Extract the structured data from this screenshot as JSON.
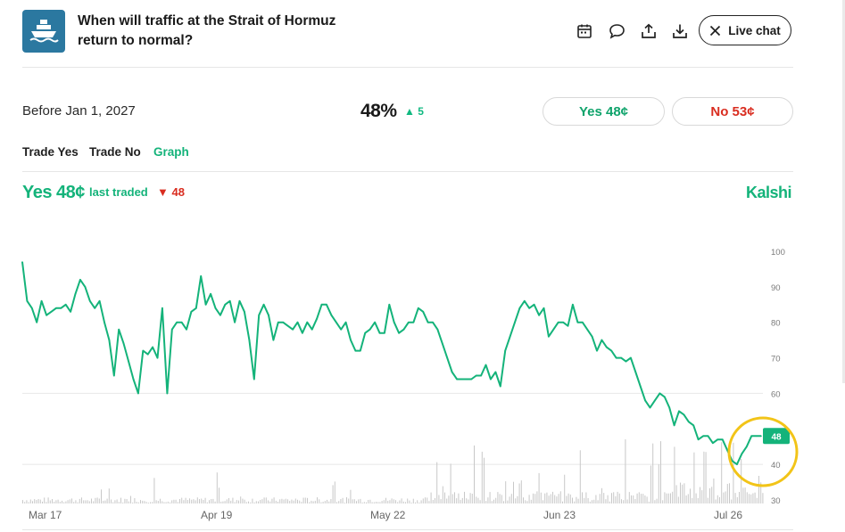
{
  "header": {
    "title": "When will traffic at the Strait of Hormuz return to normal?",
    "icon": "ship-icon",
    "actions": [
      "calendar-icon",
      "comment-icon",
      "share-icon",
      "download-icon"
    ],
    "live_chat_label": "Live chat"
  },
  "outcome": {
    "label": "Before Jan 1, 2027",
    "chance": "48%",
    "delta": "5",
    "yes_label": "Yes 48¢",
    "no_label": "No 53¢"
  },
  "tabs": [
    "Trade Yes",
    "Trade No",
    "Graph"
  ],
  "active_tab": "Graph",
  "chart_header": {
    "yes_price": "Yes 48¢",
    "last_traded_label": "last traded",
    "last_traded_value": "48",
    "logo_text": "Kalshi"
  },
  "colors": {
    "accent": "#14b37a",
    "negative": "#d92d20",
    "highlight_circle": "#f2c418",
    "icon_bg": "#2b78a0"
  },
  "chart_data": {
    "type": "line",
    "x_ticks": [
      "Mar 17",
      "Apr 19",
      "May 22",
      "Jun 23",
      "Jul 26"
    ],
    "ylim": [
      30,
      100
    ],
    "y_ticks": [
      100,
      90,
      80,
      70,
      60,
      40,
      30
    ],
    "current_value_label": "48",
    "series": [
      {
        "values": [
          97,
          86,
          84,
          80,
          86,
          82,
          83,
          84,
          84,
          85,
          83,
          88,
          92,
          90,
          86,
          84,
          86,
          80,
          75,
          65,
          78,
          74,
          69,
          64,
          60,
          72,
          71,
          73,
          70,
          84,
          60,
          78,
          80,
          80,
          78,
          83,
          84,
          93,
          85,
          88,
          84,
          82,
          85,
          86,
          80,
          86,
          83,
          75,
          64,
          82,
          85,
          82,
          75,
          80,
          80,
          79,
          78,
          80,
          77,
          80,
          78,
          81,
          85,
          85,
          82,
          80,
          78,
          80,
          75,
          72,
          72,
          77,
          78,
          80,
          77,
          77,
          85,
          80,
          77,
          78,
          80,
          80,
          84,
          83,
          80,
          80,
          78,
          74,
          70,
          66,
          64,
          64,
          64,
          64,
          65,
          65,
          68,
          64,
          66,
          62,
          72,
          76,
          80,
          84,
          86,
          84,
          85,
          82,
          84,
          76,
          78,
          80,
          80,
          79,
          85,
          80,
          80,
          78,
          76,
          72,
          75,
          73,
          72,
          70,
          70,
          69,
          70,
          66,
          62,
          58,
          56,
          58,
          60,
          59,
          56,
          51,
          55,
          54,
          52,
          51,
          47,
          48,
          48,
          46,
          47,
          47,
          44,
          41,
          40,
          43,
          45,
          48,
          48,
          48
        ]
      }
    ],
    "volume_shown": true
  }
}
